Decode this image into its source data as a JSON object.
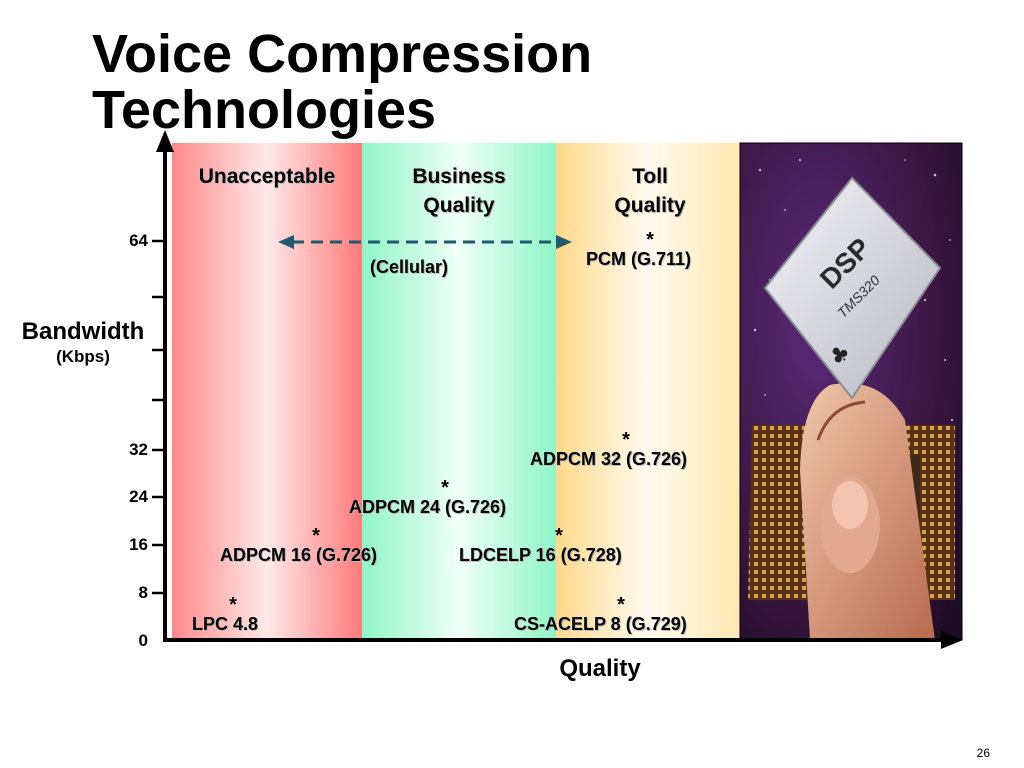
{
  "slide": {
    "title": "Voice Compression Technologies",
    "page_number": "26"
  },
  "chart_data": {
    "type": "scatter",
    "title": "Voice Compression Technologies",
    "xlabel": "Quality",
    "ylabel": "Bandwidth",
    "ylabel_unit": "(Kbps)",
    "y_ticks": [
      "0",
      "8",
      "16",
      "24",
      "32",
      "64"
    ],
    "regions": [
      {
        "label": "Unacceptable",
        "color": "#ff8a8a"
      },
      {
        "label": "Business Quality",
        "color": "#8ff5c8"
      },
      {
        "label": "Toll Quality",
        "color": "#ffd98a"
      }
    ],
    "points": [
      {
        "label": "LPC 4.8",
        "bandwidth": 4.8,
        "region": "Unacceptable"
      },
      {
        "label": "ADPCM 16 (G.726)",
        "bandwidth": 16,
        "region": "Unacceptable"
      },
      {
        "label": "ADPCM 24 (G.726)",
        "bandwidth": 24,
        "region": "Business Quality"
      },
      {
        "label": "LDCELP 16 (G.728)",
        "bandwidth": 16,
        "region": "Business Quality"
      },
      {
        "label": "ADPCM 32 (G.726)",
        "bandwidth": 32,
        "region": "Toll Quality"
      },
      {
        "label": "CS-ACELP 8 (G.729)",
        "bandwidth": 8,
        "region": "Toll Quality"
      },
      {
        "label": "PCM (G.711)",
        "bandwidth": 64,
        "region": "Toll Quality"
      }
    ],
    "range_annotation": {
      "label": "(Cellular)",
      "bandwidth": 64,
      "from": "Unacceptable",
      "to": "Toll Quality"
    },
    "grid": false,
    "legend": "none"
  },
  "image": {
    "chip_label": "DSP",
    "chip_model": "TMS320"
  },
  "colors": {
    "axis": "#000000",
    "arrow": "#1f5a6e"
  }
}
